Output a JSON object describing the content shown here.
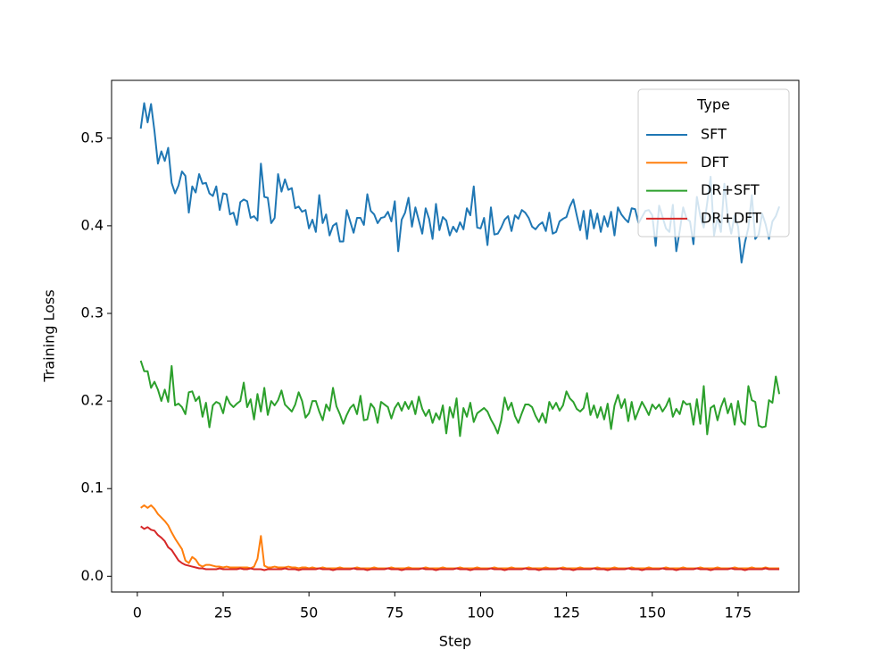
{
  "chart_data": {
    "type": "line",
    "x_label": "Step",
    "y_label": "Training Loss",
    "legend_title": "Type",
    "legend": "upper right",
    "xlim": [
      -7.5,
      192.7
    ],
    "ylim": [
      -0.018,
      0.566
    ],
    "xticks": [
      0,
      25,
      50,
      75,
      100,
      125,
      150,
      175
    ],
    "yticks": [
      {
        "value": 0,
        "label": "0.0"
      },
      0.1,
      0.2,
      0.3,
      0.4,
      0.5
    ],
    "x": [
      1,
      2,
      3,
      4,
      5,
      6,
      7,
      8,
      9,
      10,
      11,
      12,
      13,
      14,
      15,
      16,
      17,
      18,
      19,
      20,
      21,
      22,
      23,
      24,
      25,
      26,
      27,
      28,
      29,
      30,
      31,
      32,
      33,
      34,
      35,
      36,
      37,
      38,
      39,
      40,
      41,
      42,
      43,
      44,
      45,
      46,
      47,
      48,
      49,
      50,
      51,
      52,
      53,
      54,
      55,
      56,
      57,
      58,
      59,
      60,
      61,
      62,
      63,
      64,
      65,
      66,
      67,
      68,
      69,
      70,
      71,
      72,
      73,
      74,
      75,
      76,
      77,
      78,
      79,
      80,
      81,
      82,
      83,
      84,
      85,
      86,
      87,
      88,
      89,
      90,
      91,
      92,
      93,
      94,
      95,
      96,
      97,
      98,
      99,
      100,
      101,
      102,
      103,
      104,
      105,
      106,
      107,
      108,
      109,
      110,
      111,
      112,
      113,
      114,
      115,
      116,
      117,
      118,
      119,
      120,
      121,
      122,
      123,
      124,
      125,
      126,
      127,
      128,
      129,
      130,
      131,
      132,
      133,
      134,
      135,
      136,
      137,
      138,
      139,
      140,
      141,
      142,
      143,
      144,
      145,
      146,
      147,
      148,
      149,
      150,
      151,
      152,
      153,
      154,
      155,
      156,
      157,
      158,
      159,
      160,
      161,
      162,
      163,
      164,
      165,
      166,
      167,
      168,
      169,
      170,
      171,
      172,
      173,
      174,
      175,
      176,
      177,
      178,
      179,
      180,
      181,
      182,
      183,
      184,
      185,
      186,
      187
    ],
    "series": [
      {
        "name": "SFT",
        "color": "#1f77b4",
        "values": [
          0.511,
          0.54,
          0.518,
          0.539,
          0.508,
          0.471,
          0.485,
          0.474,
          0.489,
          0.449,
          0.437,
          0.446,
          0.462,
          0.457,
          0.415,
          0.445,
          0.438,
          0.459,
          0.448,
          0.449,
          0.437,
          0.434,
          0.445,
          0.418,
          0.437,
          0.436,
          0.413,
          0.415,
          0.401,
          0.427,
          0.43,
          0.428,
          0.409,
          0.411,
          0.406,
          0.471,
          0.433,
          0.432,
          0.403,
          0.409,
          0.459,
          0.439,
          0.453,
          0.441,
          0.443,
          0.42,
          0.422,
          0.416,
          0.418,
          0.397,
          0.407,
          0.393,
          0.435,
          0.403,
          0.413,
          0.389,
          0.4,
          0.403,
          0.382,
          0.382,
          0.418,
          0.405,
          0.392,
          0.409,
          0.409,
          0.401,
          0.436,
          0.417,
          0.413,
          0.403,
          0.409,
          0.41,
          0.416,
          0.405,
          0.428,
          0.371,
          0.407,
          0.415,
          0.432,
          0.399,
          0.421,
          0.406,
          0.391,
          0.42,
          0.408,
          0.385,
          0.425,
          0.395,
          0.41,
          0.406,
          0.389,
          0.399,
          0.393,
          0.404,
          0.396,
          0.42,
          0.412,
          0.445,
          0.398,
          0.397,
          0.409,
          0.378,
          0.421,
          0.39,
          0.391,
          0.398,
          0.407,
          0.411,
          0.394,
          0.412,
          0.408,
          0.418,
          0.415,
          0.409,
          0.399,
          0.396,
          0.401,
          0.404,
          0.394,
          0.415,
          0.391,
          0.393,
          0.405,
          0.408,
          0.41,
          0.422,
          0.43,
          0.412,
          0.395,
          0.417,
          0.385,
          0.418,
          0.397,
          0.414,
          0.393,
          0.411,
          0.399,
          0.416,
          0.389,
          0.421,
          0.413,
          0.408,
          0.404,
          0.42,
          0.419,
          0.403,
          0.41,
          0.417,
          0.418,
          0.412,
          0.377,
          0.423,
          0.41,
          0.397,
          0.393,
          0.424,
          0.371,
          0.394,
          0.421,
          0.408,
          0.405,
          0.379,
          0.433,
          0.411,
          0.398,
          0.426,
          0.456,
          0.389,
          0.41,
          0.393,
          0.448,
          0.41,
          0.391,
          0.412,
          0.399,
          0.358,
          0.381,
          0.398,
          0.435,
          0.385,
          0.39,
          0.414,
          0.402,
          0.385,
          0.405,
          0.411,
          0.422
        ]
      },
      {
        "name": "DFT",
        "color": "#ff7f0e",
        "values": [
          0.078,
          0.081,
          0.078,
          0.081,
          0.077,
          0.071,
          0.067,
          0.063,
          0.058,
          0.05,
          0.043,
          0.037,
          0.031,
          0.018,
          0.015,
          0.022,
          0.019,
          0.013,
          0.011,
          0.013,
          0.013,
          0.012,
          0.011,
          0.011,
          0.01,
          0.011,
          0.01,
          0.01,
          0.01,
          0.01,
          0.01,
          0.01,
          0.009,
          0.011,
          0.02,
          0.046,
          0.012,
          0.01,
          0.01,
          0.011,
          0.01,
          0.01,
          0.01,
          0.011,
          0.01,
          0.01,
          0.009,
          0.01,
          0.01,
          0.009,
          0.01,
          0.009,
          0.009,
          0.01,
          0.009,
          0.009,
          0.009,
          0.009,
          0.01,
          0.009,
          0.009,
          0.009,
          0.009,
          0.01,
          0.009,
          0.009,
          0.009,
          0.009,
          0.01,
          0.009,
          0.009,
          0.009,
          0.009,
          0.01,
          0.009,
          0.009,
          0.009,
          0.009,
          0.01,
          0.009,
          0.009,
          0.009,
          0.009,
          0.01,
          0.009,
          0.009,
          0.009,
          0.009,
          0.01,
          0.009,
          0.009,
          0.009,
          0.009,
          0.01,
          0.009,
          0.009,
          0.009,
          0.009,
          0.01,
          0.009,
          0.009,
          0.009,
          0.009,
          0.01,
          0.009,
          0.009,
          0.009,
          0.009,
          0.01,
          0.009,
          0.009,
          0.009,
          0.009,
          0.01,
          0.009,
          0.009,
          0.009,
          0.009,
          0.01,
          0.009,
          0.009,
          0.009,
          0.009,
          0.01,
          0.009,
          0.009,
          0.009,
          0.009,
          0.01,
          0.009,
          0.009,
          0.009,
          0.009,
          0.01,
          0.009,
          0.009,
          0.009,
          0.009,
          0.01,
          0.009,
          0.009,
          0.009,
          0.009,
          0.01,
          0.009,
          0.009,
          0.009,
          0.009,
          0.01,
          0.009,
          0.009,
          0.009,
          0.009,
          0.01,
          0.009,
          0.009,
          0.009,
          0.009,
          0.01,
          0.009,
          0.009,
          0.009,
          0.009,
          0.01,
          0.009,
          0.009,
          0.009,
          0.009,
          0.01,
          0.009,
          0.009,
          0.009,
          0.009,
          0.01,
          0.009,
          0.009,
          0.009,
          0.009,
          0.01,
          0.009,
          0.009,
          0.009,
          0.01,
          0.009,
          0.009,
          0.009,
          0.009
        ]
      },
      {
        "name": "DR+SFT",
        "color": "#2ca02c",
        "values": [
          0.246,
          0.234,
          0.234,
          0.215,
          0.222,
          0.213,
          0.2,
          0.213,
          0.199,
          0.24,
          0.195,
          0.197,
          0.193,
          0.185,
          0.21,
          0.211,
          0.2,
          0.205,
          0.182,
          0.198,
          0.17,
          0.195,
          0.199,
          0.197,
          0.186,
          0.205,
          0.197,
          0.193,
          0.197,
          0.2,
          0.221,
          0.193,
          0.202,
          0.179,
          0.208,
          0.188,
          0.215,
          0.184,
          0.2,
          0.195,
          0.201,
          0.212,
          0.196,
          0.192,
          0.188,
          0.196,
          0.21,
          0.2,
          0.181,
          0.186,
          0.2,
          0.2,
          0.188,
          0.178,
          0.196,
          0.189,
          0.215,
          0.194,
          0.185,
          0.174,
          0.184,
          0.192,
          0.196,
          0.185,
          0.206,
          0.178,
          0.179,
          0.197,
          0.192,
          0.175,
          0.199,
          0.196,
          0.193,
          0.18,
          0.192,
          0.198,
          0.189,
          0.199,
          0.191,
          0.2,
          0.185,
          0.205,
          0.191,
          0.183,
          0.19,
          0.175,
          0.186,
          0.179,
          0.195,
          0.163,
          0.193,
          0.181,
          0.203,
          0.16,
          0.192,
          0.182,
          0.198,
          0.176,
          0.186,
          0.189,
          0.192,
          0.188,
          0.179,
          0.172,
          0.163,
          0.178,
          0.204,
          0.19,
          0.198,
          0.183,
          0.175,
          0.186,
          0.196,
          0.196,
          0.193,
          0.183,
          0.176,
          0.186,
          0.175,
          0.199,
          0.191,
          0.198,
          0.189,
          0.195,
          0.211,
          0.203,
          0.199,
          0.191,
          0.188,
          0.192,
          0.209,
          0.184,
          0.195,
          0.181,
          0.193,
          0.179,
          0.197,
          0.168,
          0.195,
          0.207,
          0.192,
          0.202,
          0.177,
          0.199,
          0.179,
          0.189,
          0.199,
          0.192,
          0.184,
          0.196,
          0.191,
          0.196,
          0.188,
          0.194,
          0.203,
          0.182,
          0.191,
          0.185,
          0.2,
          0.196,
          0.197,
          0.173,
          0.202,
          0.174,
          0.217,
          0.162,
          0.192,
          0.195,
          0.178,
          0.193,
          0.203,
          0.186,
          0.197,
          0.173,
          0.2,
          0.177,
          0.173,
          0.217,
          0.201,
          0.199,
          0.172,
          0.17,
          0.171,
          0.201,
          0.198,
          0.228,
          0.208
        ]
      },
      {
        "name": "DR+DFT",
        "color": "#d62728",
        "values": [
          0.057,
          0.054,
          0.056,
          0.053,
          0.052,
          0.047,
          0.044,
          0.04,
          0.033,
          0.03,
          0.024,
          0.018,
          0.015,
          0.013,
          0.012,
          0.011,
          0.01,
          0.009,
          0.009,
          0.008,
          0.008,
          0.008,
          0.008,
          0.009,
          0.008,
          0.008,
          0.008,
          0.008,
          0.008,
          0.009,
          0.008,
          0.008,
          0.009,
          0.008,
          0.008,
          0.008,
          0.007,
          0.008,
          0.008,
          0.008,
          0.008,
          0.008,
          0.009,
          0.008,
          0.008,
          0.008,
          0.007,
          0.008,
          0.008,
          0.008,
          0.008,
          0.008,
          0.009,
          0.008,
          0.008,
          0.008,
          0.007,
          0.008,
          0.008,
          0.008,
          0.008,
          0.008,
          0.009,
          0.008,
          0.008,
          0.008,
          0.007,
          0.008,
          0.008,
          0.008,
          0.008,
          0.008,
          0.009,
          0.008,
          0.008,
          0.008,
          0.007,
          0.008,
          0.008,
          0.008,
          0.008,
          0.008,
          0.009,
          0.008,
          0.008,
          0.008,
          0.007,
          0.008,
          0.008,
          0.008,
          0.008,
          0.008,
          0.009,
          0.008,
          0.008,
          0.008,
          0.007,
          0.008,
          0.008,
          0.008,
          0.008,
          0.008,
          0.009,
          0.008,
          0.008,
          0.008,
          0.007,
          0.008,
          0.008,
          0.008,
          0.008,
          0.008,
          0.009,
          0.008,
          0.008,
          0.008,
          0.007,
          0.008,
          0.008,
          0.008,
          0.008,
          0.008,
          0.009,
          0.008,
          0.008,
          0.008,
          0.007,
          0.008,
          0.008,
          0.008,
          0.008,
          0.008,
          0.009,
          0.008,
          0.008,
          0.008,
          0.007,
          0.008,
          0.008,
          0.008,
          0.008,
          0.008,
          0.009,
          0.008,
          0.008,
          0.008,
          0.007,
          0.008,
          0.008,
          0.008,
          0.008,
          0.008,
          0.009,
          0.008,
          0.008,
          0.008,
          0.007,
          0.008,
          0.008,
          0.008,
          0.008,
          0.008,
          0.009,
          0.008,
          0.008,
          0.008,
          0.007,
          0.008,
          0.008,
          0.008,
          0.008,
          0.008,
          0.009,
          0.008,
          0.008,
          0.008,
          0.007,
          0.008,
          0.008,
          0.008,
          0.008,
          0.008,
          0.009,
          0.008,
          0.008,
          0.008,
          0.008
        ]
      }
    ]
  }
}
